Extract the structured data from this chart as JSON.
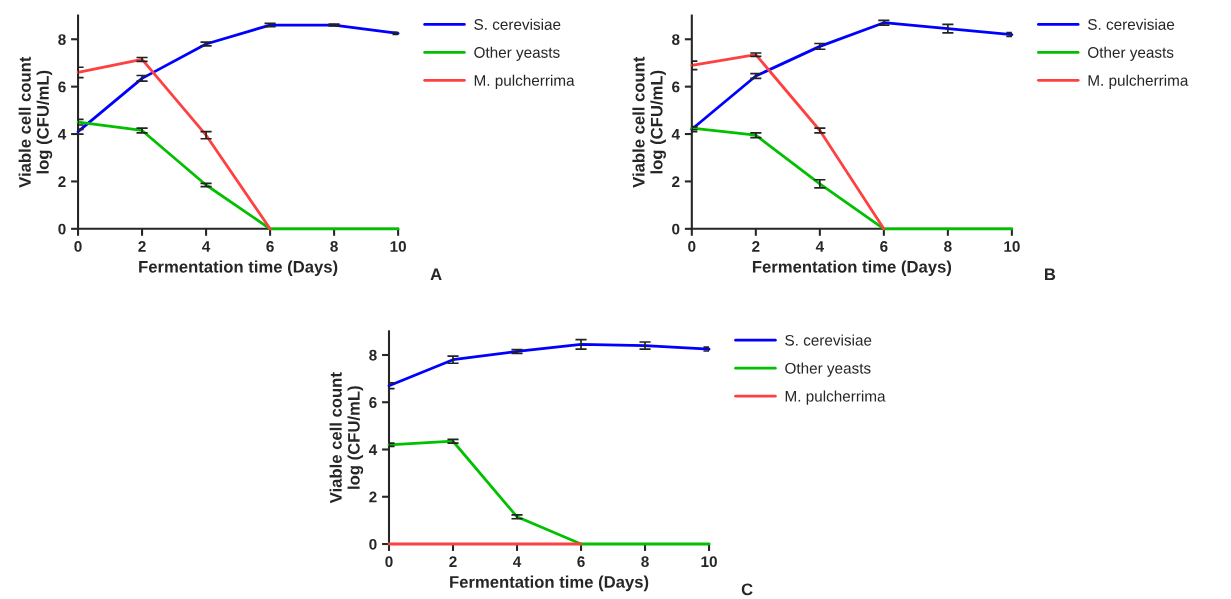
{
  "chart_data": [
    {
      "type": "line",
      "xlabel": "Fermentation time (Days)",
      "ylabel": "Viable cell count\nlog (CFU/mL)",
      "x": [
        0,
        2,
        4,
        6,
        8,
        10
      ],
      "xlim": [
        0,
        10
      ],
      "xticks": [
        0,
        2,
        4,
        6,
        8,
        10
      ],
      "ylim": [
        0,
        9
      ],
      "yticks": [
        0,
        2,
        4,
        6,
        8
      ],
      "grid": false,
      "legend": "right",
      "marker": "none",
      "annotations": [
        "A"
      ],
      "series": [
        {
          "name": "S. cerevisiae",
          "color": "#0000ff",
          "values": [
            4.1,
            6.35,
            7.8,
            8.6,
            8.6,
            8.25
          ],
          "errors": [
            0.1,
            0.12,
            0.08,
            0.07,
            0.04,
            0.04
          ]
        },
        {
          "name": "Other yeasts",
          "color": "#00c000",
          "values": [
            4.5,
            4.15,
            1.85,
            0,
            0,
            0
          ],
          "errors": [
            0.12,
            0.1,
            0.07,
            null,
            null,
            null
          ]
        },
        {
          "name": "M. pulcherrima",
          "color": "#ff4040",
          "values": [
            6.6,
            7.15,
            3.95,
            0,
            null,
            null
          ],
          "errors": [
            0.22,
            0.08,
            0.15,
            null,
            null,
            null
          ]
        }
      ]
    },
    {
      "type": "line",
      "xlabel": "Fermentation time (Days)",
      "ylabel": "Viable cell count\nlog (CFU/mL)",
      "x": [
        0,
        2,
        4,
        6,
        8,
        10
      ],
      "xlim": [
        0,
        10
      ],
      "xticks": [
        0,
        2,
        4,
        6,
        8,
        10
      ],
      "ylim": [
        0,
        9
      ],
      "yticks": [
        0,
        2,
        4,
        6,
        8
      ],
      "grid": false,
      "legend": "right",
      "marker": "none",
      "annotations": [
        "B"
      ],
      "series": [
        {
          "name": "S. cerevisiae",
          "color": "#0000ff",
          "values": [
            4.2,
            6.45,
            7.7,
            8.7,
            8.45,
            8.2
          ],
          "errors": [
            0.1,
            0.1,
            0.12,
            0.1,
            0.18,
            0.08
          ]
        },
        {
          "name": "Other yeasts",
          "color": "#00c000",
          "values": [
            4.25,
            3.95,
            1.9,
            0,
            0,
            0
          ],
          "errors": [
            0.07,
            0.1,
            0.17,
            null,
            null,
            null
          ]
        },
        {
          "name": "M. pulcherrima",
          "color": "#ff4040",
          "values": [
            6.9,
            7.35,
            4.15,
            0,
            null,
            null
          ],
          "errors": [
            0.18,
            0.07,
            0.1,
            null,
            null,
            null
          ]
        }
      ]
    },
    {
      "type": "line",
      "xlabel": "Fermentation time (Days)",
      "ylabel": "Viable cell count\nlog (CFU/mL)",
      "x": [
        0,
        2,
        4,
        6,
        8,
        10
      ],
      "xlim": [
        0,
        10
      ],
      "xticks": [
        0,
        2,
        4,
        6,
        8,
        10
      ],
      "ylim": [
        0,
        9
      ],
      "yticks": [
        0,
        2,
        4,
        6,
        8
      ],
      "grid": false,
      "legend": "right",
      "marker": "none",
      "annotations": [
        "C"
      ],
      "series": [
        {
          "name": "S. cerevisiae",
          "color": "#0000ff",
          "values": [
            6.7,
            7.8,
            8.15,
            8.45,
            8.4,
            8.25
          ],
          "errors": [
            0.12,
            0.15,
            0.08,
            0.2,
            0.15,
            0.08
          ]
        },
        {
          "name": "Other yeasts",
          "color": "#00c000",
          "values": [
            4.2,
            4.35,
            1.15,
            0,
            0,
            0
          ],
          "errors": [
            0.07,
            0.08,
            0.08,
            null,
            null,
            null
          ]
        },
        {
          "name": "M. pulcherrima",
          "color": "#ff4040",
          "values": [
            0,
            0,
            0,
            0,
            null,
            null
          ]
        }
      ]
    }
  ]
}
